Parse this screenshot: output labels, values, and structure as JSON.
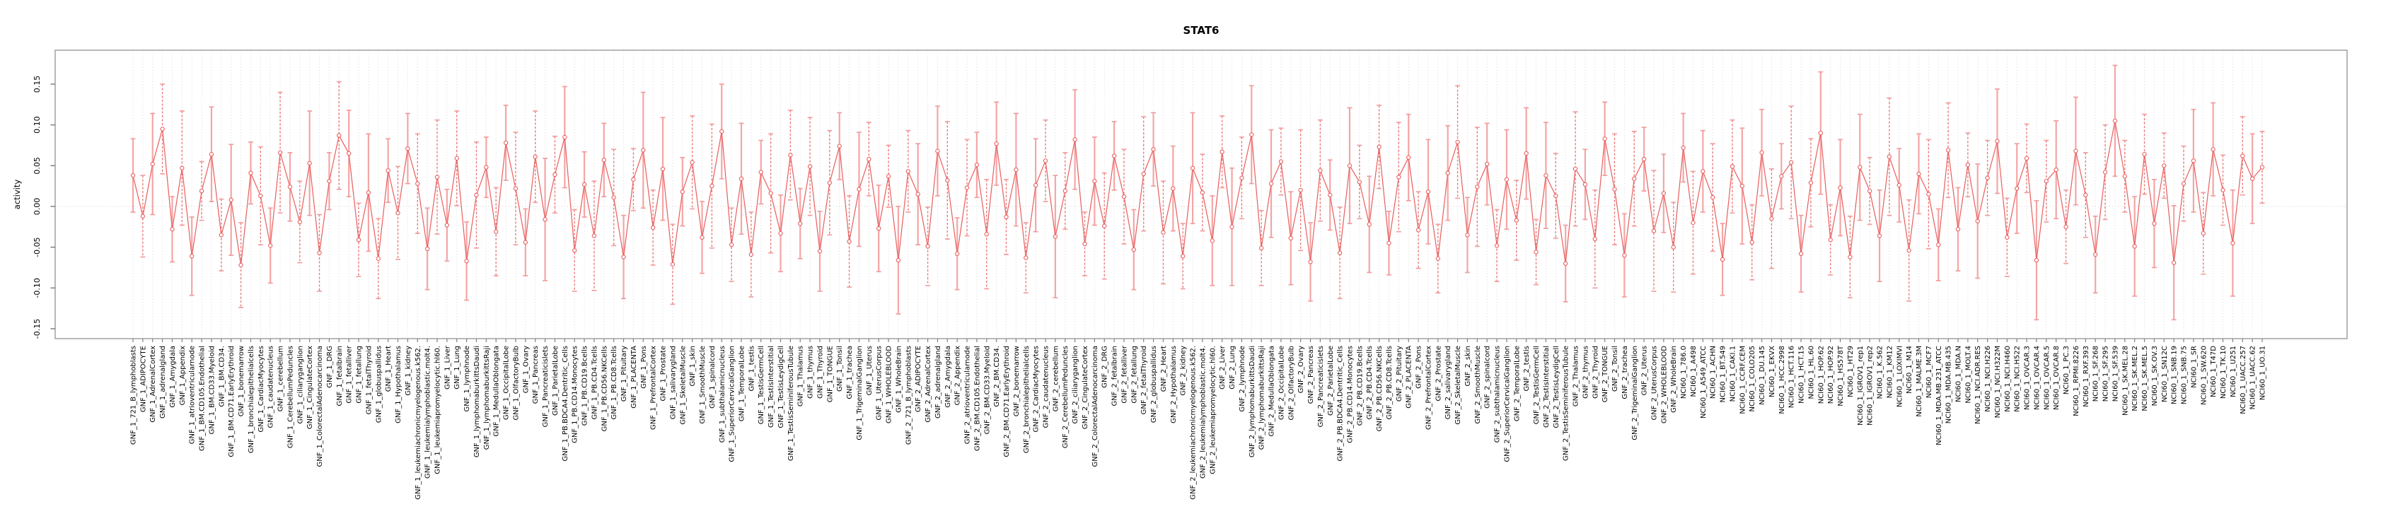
{
  "chart_data": {
    "type": "line",
    "title": "STAT6",
    "xlabel": "",
    "ylabel": "activity",
    "ylim": [
      -0.162,
      0.19
    ],
    "yticks": [
      0.15,
      0.1,
      0.05,
      0.0,
      -0.05,
      -0.1,
      -0.15
    ],
    "ytick_labels": [
      "0.15",
      "0.10",
      "0.05",
      "0.00",
      "-0.05",
      "-0.10",
      "-0.15"
    ],
    "grid": "dotted vertical gridline at every sample; dotted horizontal line at y=0",
    "legend_position": "none",
    "marker": "open-circle with error bars, connected by line",
    "colors": {
      "line": "#e96363",
      "errorbar_solid": "#f5a5a5",
      "errorbar_dashed": "#ee7878",
      "errorbar_cap": "#f29d9d",
      "gridline": "#dcdcdc",
      "zero_line": "#d0d0d0",
      "box": "#a0a0a0",
      "tick": "#808080",
      "text": "#000000"
    },
    "group_prefixes": [
      "GNF_1_",
      "GNF_2_",
      "NCI60_1_"
    ],
    "gnf_tissues": [
      "721_B_lymphoblasts",
      "ADIPOCYTE",
      "AdrenalCortex",
      "adrenalgland",
      "Amygdala",
      "Appendix",
      "atrioventricularnode",
      "BM.CD105.Endothelial",
      "BM.CD33.Myeloid",
      "BM.CD34.",
      "BM.CD71.EarlyErythroid",
      "bonemarrow",
      "bronchialepithelialcells",
      "CardiacMyocytes",
      "caudatenucleus",
      "cerebellum",
      "CerebellumPeduncles",
      "ciliaryganglion",
      "CingulateCortex",
      "ColorectalAdenocarcinoma",
      "DRG",
      "fetalbrain",
      "fetalliver",
      "fetallung",
      "fetalThyroid",
      "globuspallidus",
      "Heart",
      "Hypothalamus",
      "kidney",
      "leukemiachronicmyelogenous.k562.",
      "leukemialymphoblastic.molt4.",
      "leukemiapromyelocytic.hl60.",
      "Liver",
      "Lung",
      "lymphnode",
      "lymphomaburkittsDaudi",
      "lymphomaburkittsRaji",
      "MedullaOblongata",
      "OccipitalLobe",
      "OlfactoryBulb",
      "Ovary",
      "Pancreas",
      "Pancreaticislets",
      "ParietalLobe",
      "PB.BDCA4.Dentritic_Cells",
      "PB.CD14.Monocytes",
      "PB.CD19.Bcells",
      "PB.CD4.Tcells",
      "PB.CD56.NKCells",
      "PB.CD8.Tcells",
      "Pituitary",
      "PLACENTA",
      "Pons",
      "PrefrontalCortex",
      "Prostate",
      "salivarygland",
      "SkeletalMuscle",
      "skin",
      "SmoothMuscle",
      "spinalcord",
      "subthalamicnucleus",
      "SuperiorCervicalGanglion",
      "TemporalLobe",
      "testis",
      "TestisGermCell",
      "TestisInterstitial",
      "TestisLeydigCell",
      "TestisSeminiferousTubule",
      "Thalamus",
      "thymus",
      "Thyroid",
      "TONGUE",
      "Tonsil",
      "trachea",
      "TrigeminalGanglion",
      "Uterus",
      "UterusCorpus",
      "WHOLEBLOOD",
      "WholeBrain"
    ],
    "nci60_lines": [
      "786.0",
      "A498",
      "A549_ATCC",
      "ACHN",
      "BT.549",
      "CAKI.1",
      "CCRF.CEM",
      "COLO205",
      "DU.145",
      "EKVX",
      "HCC.2998",
      "HCT.116",
      "HCT.15",
      "HL.60",
      "HOP.62",
      "HOP.92",
      "HS578T",
      "HT29",
      "IGROV1_rep1",
      "IGROV1_rep2",
      "K.562",
      "KM12",
      "LOXIMVI",
      "M14",
      "MALME.3M",
      "MCF7",
      "MDA.MB.231_ATCC",
      "MDA.MB.435",
      "MDA.N",
      "MOLT.4",
      "NCI.ADR.RES",
      "NCI.H226",
      "NCI.H322M",
      "NCI.H460",
      "NCI.H522",
      "OVCAR.3",
      "OVCAR.4",
      "OVCAR.5",
      "OVCAR.8",
      "PC.3",
      "RPMI.8226",
      "RXF.393",
      "SF.268",
      "SF.295",
      "SF.539",
      "SK.MEL.28",
      "SK.MEL.2",
      "SK.MEL.5",
      "SK.OV.3",
      "SN12C",
      "SNB.19",
      "SNB.75",
      "SR",
      "SW.620",
      "T47D",
      "TK.10",
      "U251",
      "UACC.257",
      "UACC.62",
      "UO.31"
    ],
    "values": [
      0.038,
      -0.012,
      0.052,
      0.095,
      -0.028,
      0.047,
      -0.061,
      0.019,
      0.064,
      -0.035,
      0.008,
      -0.072,
      0.041,
      0.013,
      -0.048,
      0.066,
      0.024,
      -0.019,
      0.053,
      -0.057,
      0.031,
      0.087,
      0.065,
      -0.041,
      0.017,
      -0.064,
      0.044,
      -0.008,
      0.071,
      0.028,
      -0.052,
      0.036,
      -0.023,
      0.059,
      -0.067,
      0.014,
      0.048,
      -0.031,
      0.078,
      0.022,
      -0.044,
      0.061,
      -0.016,
      0.039,
      0.085,
      -0.054,
      0.027,
      -0.036,
      0.057,
      0.011,
      -0.062,
      0.033,
      0.069,
      -0.026,
      0.046,
      -0.071,
      0.018,
      0.054,
      -0.038,
      0.025,
      0.092,
      -0.047,
      0.034,
      -0.059,
      0.042,
      0.016,
      -0.033,
      0.063,
      -0.021,
      0.049,
      -0.055,
      0.029,
      0.074,
      -0.043,
      0.021,
      0.058,
      -0.027,
      0.037,
      -0.066,
      0.043,
      0.015,
      -0.049,
      0.068,
      0.032,
      -0.058,
      0.023,
      0.051,
      -0.034,
      0.077,
      -0.013,
      0.045,
      -0.063,
      0.026,
      0.056,
      -0.037,
      0.019,
      0.082,
      -0.046,
      0.031,
      -0.024,
      0.062,
      0.012,
      -0.053,
      0.04,
      0.07,
      -0.032,
      0.022,
      -0.061,
      0.047,
      0.017,
      -0.042,
      0.067,
      -0.025,
      0.035,
      0.088,
      -0.051,
      0.028,
      0.055,
      -0.039,
      0.02,
      -0.068,
      0.044,
      0.014,
      -0.057,
      0.05,
      0.03,
      -0.022,
      0.073,
      -0.045,
      0.036,
      0.06,
      -0.029,
      0.018,
      -0.064,
      0.041,
      0.079,
      -0.035,
      0.024,
      0.052,
      -0.048,
      0.033,
      -0.017,
      0.065,
      -0.056,
      0.038,
      0.013,
      -0.07,
      0.046,
      0.027,
      -0.04,
      0.083,
      0.021,
      -0.06,
      0.034,
      0.058,
      -0.03,
      0.016,
      -0.05,
      0.072,
      -0.02,
      0.043,
      0.011,
      -0.065,
      0.049,
      0.025,
      -0.044,
      0.066,
      -0.015,
      0.037,
      0.054,
      -0.058,
      0.029,
      0.09,
      -0.041,
      0.023,
      -0.062,
      0.048,
      0.019,
      -0.036,
      0.061,
      0.026,
      -0.054,
      0.04,
      0.015,
      -0.047,
      0.069,
      -0.028,
      0.051,
      -0.018,
      0.035,
      0.08,
      -0.038,
      0.022,
      0.059,
      -0.066,
      0.031,
      0.045,
      -0.025,
      0.068,
      0.014,
      -0.059,
      0.042,
      0.105,
      0.037,
      -0.049,
      0.064,
      -0.021,
      0.05,
      -0.069,
      0.028,
      0.056,
      -0.033,
      0.07,
      0.02,
      -0.045,
      0.062,
      0.034,
      0.048
    ],
    "errors": [
      0.045,
      0.05,
      0.062,
      0.055,
      0.04,
      0.07,
      0.048,
      0.036,
      0.058,
      0.044,
      0.068,
      0.052,
      0.038,
      0.06,
      0.046,
      0.074,
      0.042,
      0.05,
      0.064,
      0.047,
      0.035,
      0.066,
      0.053,
      0.045,
      0.072,
      0.049,
      0.039,
      0.057,
      0.043,
      0.061,
      0.05,
      0.07,
      0.044,
      0.058,
      0.048,
      0.065,
      0.037,
      0.054,
      0.046,
      0.069,
      0.041,
      0.056,
      0.075,
      0.047,
      0.062,
      0.05,
      0.04,
      0.067,
      0.045,
      0.059,
      0.051,
      0.038,
      0.071,
      0.046,
      0.063,
      0.049,
      0.042,
      0.057,
      0.044,
      0.076,
      0.058,
      0.045,
      0.068,
      0.052,
      0.039,
      0.073,
      0.047,
      0.055,
      0.043,
      0.06,
      0.049,
      0.064,
      0.041,
      0.056,
      0.07,
      0.045,
      0.053,
      0.038,
      0.066,
      0.05,
      0.062,
      0.048,
      0.055,
      0.072,
      0.044,
      0.059,
      0.04,
      0.067,
      0.051,
      0.046,
      0.069,
      0.043,
      0.057,
      0.05,
      0.075,
      0.047,
      0.061,
      0.039,
      0.054,
      0.065,
      0.042,
      0.058,
      0.049,
      0.07,
      0.045,
      0.063,
      0.052,
      0.04,
      0.068,
      0.047,
      0.055,
      0.044,
      0.072,
      0.05,
      0.06,
      0.046,
      0.066,
      0.041,
      0.057,
      0.074,
      0.048,
      0.062,
      0.043,
      0.056,
      0.071,
      0.045,
      0.059,
      0.051,
      0.039,
      0.067,
      0.053,
      0.047,
      0.064,
      0.042,
      0.058,
      0.069,
      0.046,
      0.073,
      0.05,
      0.044,
      0.061,
      0.049,
      0.056,
      0.04,
      0.065,
      0.052,
      0.047,
      0.07,
      0.043,
      0.06,
      0.045,
      0.068,
      0.051,
      0.058,
      0.039,
      0.074,
      0.048,
      0.055,
      0.042,
      0.063,
      0.05,
      0.066,
      0.044,
      0.057,
      0.071,
      0.046,
      0.053,
      0.061,
      0.04,
      0.069,
      0.047,
      0.054,
      0.075,
      0.043,
      0.059,
      0.05,
      0.065,
      0.041,
      0.056,
      0.072,
      0.045,
      0.062,
      0.049,
      0.067,
      0.044,
      0.058,
      0.051,
      0.039,
      0.07,
      0.046,
      0.064,
      0.048,
      0.055,
      0.042,
      0.073,
      0.05,
      0.06,
      0.045,
      0.066,
      0.052,
      0.047,
      0.058,
      0.068,
      0.044,
      0.061,
      0.049,
      0.054,
      0.04,
      0.07,
      0.046,
      0.063,
      0.05,
      0.057,
      0.043,
      0.065,
      0.048,
      0.055,
      0.044
    ]
  }
}
